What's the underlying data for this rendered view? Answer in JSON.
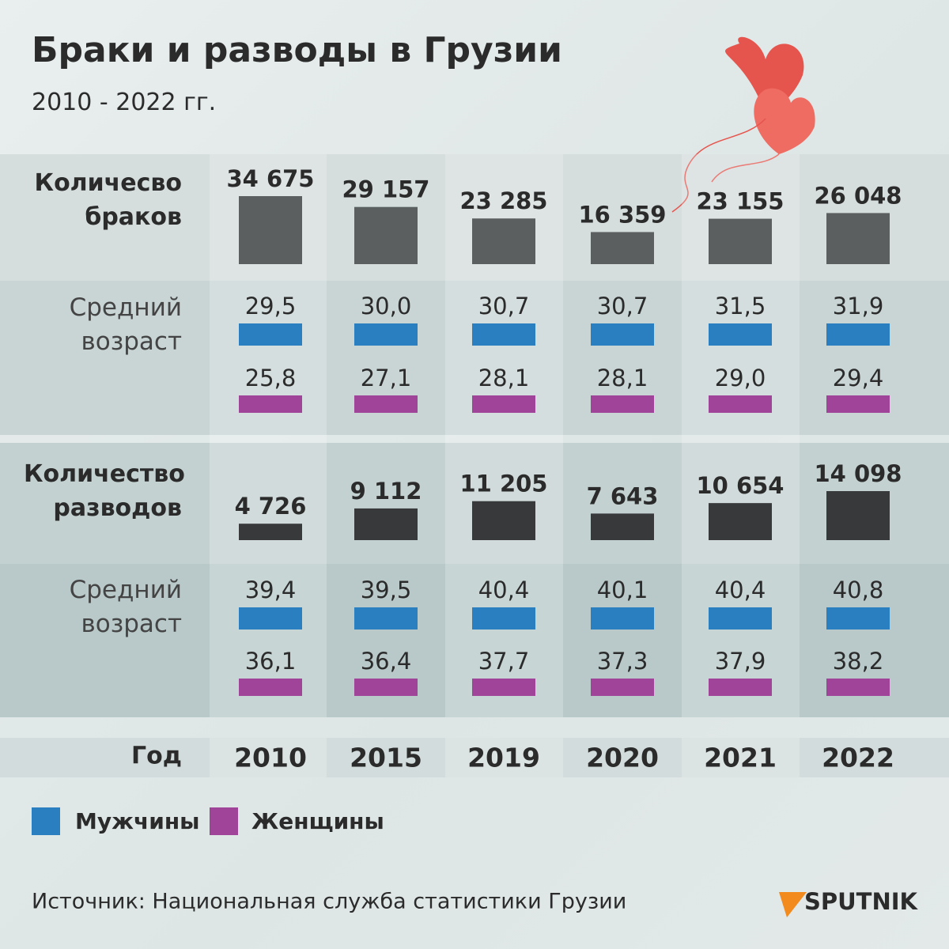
{
  "title": "Браки и разводы в Грузии",
  "subtitle": "2010 - 2022 гг.",
  "years_label": "Год",
  "years": [
    "2010",
    "2015",
    "2019",
    "2020",
    "2021",
    "2022"
  ],
  "marriages": {
    "label": "Количесво браков",
    "color": "#5c5f60",
    "values": [
      34675,
      29157,
      23285,
      16359,
      23155,
      26048
    ],
    "value_labels": [
      "34 675",
      "29 157",
      "23 285",
      "16 359",
      "23 155",
      "26 048"
    ]
  },
  "marriage_age": {
    "label": "Средний возраст",
    "men": [
      29.5,
      30.0,
      30.7,
      30.7,
      31.5,
      31.9
    ],
    "men_labels": [
      "29,5",
      "30,0",
      "30,7",
      "30,7",
      "31,5",
      "31,9"
    ],
    "women": [
      25.8,
      27.1,
      28.1,
      28.1,
      29.0,
      29.4
    ],
    "women_labels": [
      "25,8",
      "27,1",
      "28,1",
      "28,1",
      "29,0",
      "29,4"
    ]
  },
  "divorces": {
    "label": "Количество разводов",
    "color": "#38393b",
    "values": [
      4726,
      9112,
      11205,
      7643,
      10654,
      14098
    ],
    "value_labels": [
      "4 726",
      "9 112",
      "11 205",
      "7 643",
      "10 654",
      "14 098"
    ]
  },
  "divorce_age": {
    "label": "Средний возраст",
    "men": [
      39.4,
      39.5,
      40.4,
      40.1,
      40.4,
      40.8
    ],
    "men_labels": [
      "39,4",
      "39,5",
      "40,4",
      "40,1",
      "40,4",
      "40,8"
    ],
    "women": [
      36.1,
      36.4,
      37.7,
      37.3,
      37.9,
      38.2
    ],
    "women_labels": [
      "36,1",
      "36,4",
      "37,7",
      "37,3",
      "37,9",
      "38,2"
    ]
  },
  "legend": {
    "men": {
      "name": "Мужчины",
      "color": "#2a7fc0"
    },
    "women": {
      "name": "Женщины",
      "color": "#a0449a"
    }
  },
  "source": "Источник: Национальная служба статистики Грузии",
  "brand": "SPUTNIK"
}
